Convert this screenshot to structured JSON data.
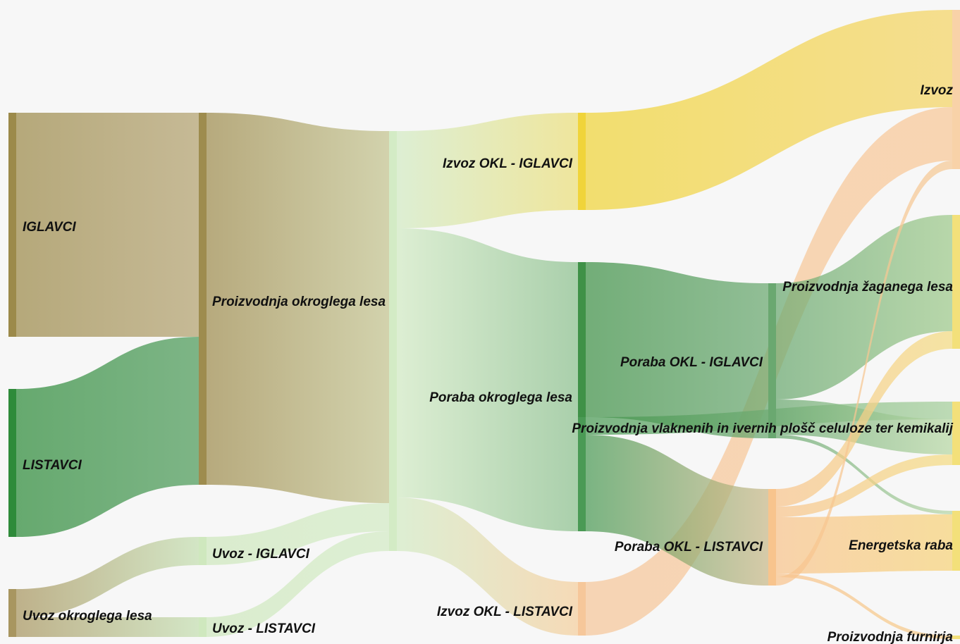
{
  "diagram": {
    "type": "sankey",
    "nodes": [
      {
        "id": "iglavci",
        "label": "IGLAVCI",
        "color": "#9c8a4a"
      },
      {
        "id": "listavci",
        "label": "LISTAVCI",
        "color": "#2e8b3a"
      },
      {
        "id": "uvoz_okl",
        "label": "Uvoz okroglega lesa",
        "color": "#a89660"
      },
      {
        "id": "proizvodnja_okl",
        "label": "Proizvodnja okroglega lesa",
        "color": "#9e8c4e"
      },
      {
        "id": "uvoz_iglavci",
        "label": "Uvoz - IGLAVCI",
        "color": "#cfe8be"
      },
      {
        "id": "uvoz_listavci",
        "label": "Uvoz - LISTAVCI",
        "color": "#cfe8be"
      },
      {
        "id": "skupaj",
        "label": "",
        "color": "#d3ebc5"
      },
      {
        "id": "izvoz_okl_iglavci",
        "label": "Izvoz OKL - IGLAVCI",
        "color": "#f0d43a"
      },
      {
        "id": "poraba_okl",
        "label": "Poraba okroglega lesa",
        "color": "#4a9a55"
      },
      {
        "id": "izvoz_okl_listavci",
        "label": "Izvoz OKL - LISTAVCI",
        "color": "#f6c79a"
      },
      {
        "id": "poraba_okl_iglavci",
        "label": "Poraba OKL - IGLAVCI",
        "color": "#3f9147"
      },
      {
        "id": "poraba_okl_listavci",
        "label": "Poraba OKL - LISTAVCI",
        "color": "#f8c48d"
      },
      {
        "id": "poraba_okl_iglavci_mid",
        "label": "",
        "color": "#6aa870"
      },
      {
        "id": "izvoz",
        "label": "Izvoz",
        "color": "#f8d2a8"
      },
      {
        "id": "zagan",
        "label": "Proizvodnja žaganega lesa",
        "color": "#f3e07a"
      },
      {
        "id": "vlaknene",
        "label": "Proizvodnja vlaknenih in ivernih plošč celuloze ter kemikalij",
        "color": "#f3e07a"
      },
      {
        "id": "energetska",
        "label": "Energetska raba",
        "color": "#f3e07a"
      },
      {
        "id": "furnir",
        "label": "Proizvodnja furnirja",
        "color": "#f3e07a"
      }
    ],
    "links": [
      {
        "source": "iglavci",
        "target": "proizvodnja_okl",
        "value": 318,
        "color": "#b3a270"
      },
      {
        "source": "listavci",
        "target": "proizvodnja_okl",
        "value": 210,
        "color": "#4e9b5a"
      },
      {
        "source": "uvoz_okl",
        "target": "uvoz_iglavci",
        "value": 40,
        "color": "#c5dfb2"
      },
      {
        "source": "uvoz_okl",
        "target": "uvoz_listavci",
        "value": 28,
        "color": "#c5dfb2"
      },
      {
        "source": "proizvodnja_okl",
        "target": "skupaj",
        "value": 528,
        "color": "#c4c490"
      },
      {
        "source": "uvoz_iglavci",
        "target": "skupaj",
        "value": 40,
        "color": "#d3ebc5"
      },
      {
        "source": "uvoz_listavci",
        "target": "skupaj",
        "value": 28,
        "color": "#d3ebc5"
      },
      {
        "source": "skupaj",
        "target": "izvoz_okl_iglavci",
        "value": 138,
        "color": "#ecdf7a"
      },
      {
        "source": "skupaj",
        "target": "poraba_okl",
        "value": 382,
        "color": "#8cc08e"
      },
      {
        "source": "skupaj",
        "target": "izvoz_okl_listavci",
        "value": 76,
        "color": "#f5cf9e"
      },
      {
        "source": "izvoz_okl_iglavci",
        "target": "izvoz",
        "value": 138,
        "color": "#f4d566"
      },
      {
        "source": "izvoz_okl_listavci",
        "target": "izvoz",
        "value": 76,
        "color": "#f8c898"
      },
      {
        "source": "poraba_okl",
        "target": "poraba_okl_iglavci",
        "value": 220,
        "color": "#5ea565"
      },
      {
        "source": "poraba_okl",
        "target": "vlaknene",
        "value": 25,
        "color": "#a6cf9c"
      },
      {
        "source": "poraba_okl",
        "target": "poraba_okl_listavci",
        "value": 137,
        "color": "#c9b98a"
      },
      {
        "source": "poraba_okl_iglavci",
        "target": "poraba_okl_iglavci_mid",
        "value": 220,
        "color": "#6aa870"
      },
      {
        "source": "poraba_okl_iglavci_mid",
        "target": "zagan",
        "value": 165,
        "color": "#9fca8c"
      },
      {
        "source": "poraba_okl_iglavci_mid",
        "target": "vlaknene",
        "value": 50,
        "color": "#b8d8a5"
      },
      {
        "source": "poraba_okl_iglavci_mid",
        "target": "energetska",
        "value": 5,
        "color": "#b7d6a8"
      },
      {
        "source": "poraba_okl_listavci",
        "target": "zagan",
        "value": 25,
        "color": "#f4dc82"
      },
      {
        "source": "poraba_okl_listavci",
        "target": "vlaknene",
        "value": 15,
        "color": "#f4dc82"
      },
      {
        "source": "poraba_okl_listavci",
        "target": "energetska",
        "value": 80,
        "color": "#f7d37a"
      },
      {
        "source": "poraba_okl_listavci",
        "target": "furnir",
        "value": 5,
        "color": "#f6cc8a"
      },
      {
        "source": "poraba_okl_listavci",
        "target": "izvoz",
        "value": 12,
        "color": "#f6c996"
      }
    ]
  }
}
